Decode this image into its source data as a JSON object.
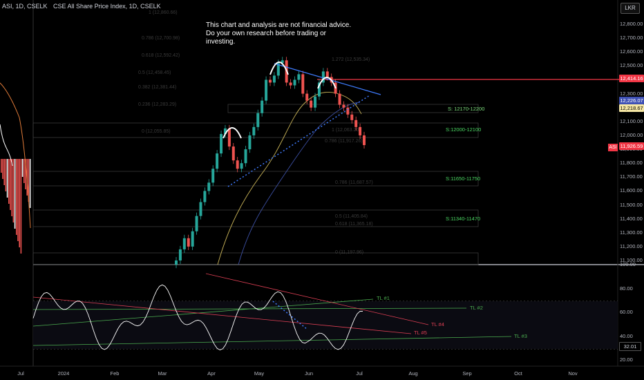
{
  "header": {
    "symbol": "ASI, 1D, CSELK",
    "title": "CSE All Share Price Index, 1D, CSELK"
  },
  "disclaimer": "This chart and analysis are not financial advice. Do your own research before trading or investing.",
  "currency_button": "LKR",
  "price_axis": {
    "labels": [
      "12,800.00",
      "12,700.00",
      "12,600.00",
      "12,500.00",
      "12,300.00",
      "12,100.00",
      "12,000.00",
      "11,900.00",
      "11,800.00",
      "11,700.00",
      "11,600.00",
      "11,500.00",
      "11,400.00",
      "11,300.00",
      "11,200.00",
      "11,100.00"
    ],
    "values": [
      12800,
      12700,
      12600,
      12500,
      12300,
      12100,
      12000,
      11900,
      11800,
      11700,
      11600,
      11500,
      11400,
      11300,
      11200,
      11100
    ],
    "tags": [
      {
        "text": "12,414.16",
        "value": 12414.16,
        "color": "#f23645"
      },
      {
        "text": "12,226.07",
        "value": 12226.07,
        "color": "#3f51b5"
      },
      {
        "text": "12,218.67",
        "value": 12218.67,
        "color": "#f5e6a3"
      },
      {
        "text": "11,926.59",
        "value": 11926.59,
        "color": "#f23645"
      }
    ],
    "last_symbol": "ASI"
  },
  "osc_axis": {
    "labels": [
      "100.00",
      "80.00",
      "60.00",
      "40.00",
      "20.00"
    ],
    "values": [
      100,
      80,
      60,
      40,
      20
    ],
    "current_tag": "32.01"
  },
  "time_axis": [
    "Jul",
    "2024",
    "Feb",
    "Mar",
    "Apr",
    "May",
    "Jun",
    "Jul",
    "Aug",
    "Sep",
    "Oct",
    "Nov"
  ],
  "zones": [
    {
      "label": "S: 12170-12200",
      "low": 12170,
      "high": 12200
    },
    {
      "label": "S:12000-12100",
      "low": 12000,
      "high": 12100
    },
    {
      "label": "S:11650-11750",
      "low": 11650,
      "high": 11750
    },
    {
      "label": "S:11340-11470",
      "low": 11340,
      "high": 11470
    }
  ],
  "resistance": 12414.16,
  "trendlines": [
    "TL #1",
    "TL #2",
    "TL #3",
    "TL #4",
    "TL #5"
  ],
  "colors": {
    "up": "#26a69a",
    "down": "#ef5350",
    "resistance": "#f23645",
    "zone_text": "#4cd964",
    "tl_green": "#4caf50",
    "tl_red": "#e04055",
    "blue_line": "#3f7cff"
  },
  "chart_data": {
    "type": "candlestick",
    "title": "CSE All Share Price Index, 1D, CSELK",
    "x": [
      "2024",
      "Feb",
      "Mar",
      "Apr",
      "May",
      "Jun",
      "Jul",
      "Aug",
      "Sep",
      "Oct",
      "Nov"
    ],
    "ylim": [
      11080,
      12850
    ],
    "close_path": [
      11100,
      11180,
      11260,
      11200,
      11310,
      11420,
      11520,
      11600,
      11660,
      11760,
      11870,
      12010,
      12050,
      11920,
      11820,
      11760,
      11800,
      11900,
      12000,
      12060,
      12160,
      12250,
      12400,
      12380,
      12430,
      12520,
      12540,
      12380,
      12360,
      12400,
      12440,
      12300,
      12250,
      12200,
      12280,
      12380,
      12460,
      12420,
      12380,
      12300,
      12220,
      12200,
      12150,
      12110,
      12060,
      12000,
      11930
    ],
    "oscillator": {
      "ylim": [
        20,
        100
      ],
      "current": 32.01
    }
  }
}
